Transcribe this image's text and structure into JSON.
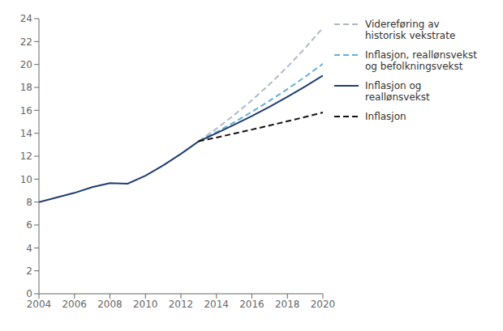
{
  "chart_data": {
    "type": "line",
    "x": [
      2004,
      2005,
      2006,
      2007,
      2008,
      2009,
      2010,
      2011,
      2012,
      2013,
      2014,
      2015,
      2016,
      2017,
      2018,
      2019,
      2020
    ],
    "series": [
      {
        "name": "Videreføring av\nhistorisk vekstrate",
        "color": "#b0b8c8",
        "line_style": "dashed",
        "values": [
          null,
          null,
          null,
          null,
          null,
          null,
          null,
          null,
          null,
          13.3,
          14.4,
          15.59,
          16.88,
          18.28,
          19.79,
          21.43,
          23.2
        ]
      },
      {
        "name": "Inflasjon, reallønsvekst\nog befolkningsvekst",
        "color": "#6aaed6",
        "line_style": "dashed",
        "values": [
          null,
          null,
          null,
          null,
          null,
          null,
          null,
          null,
          null,
          13.3,
          14.1,
          14.96,
          15.87,
          16.84,
          17.85,
          18.92,
          20.06
        ]
      },
      {
        "name": "Inflasjon og reallønsvekst",
        "color": "#1f3d6e",
        "line_style": "solid",
        "values": [
          8.0,
          8.4,
          8.8,
          9.3,
          9.65,
          9.6,
          10.3,
          11.2,
          12.2,
          13.3,
          14.0,
          14.74,
          15.51,
          16.32,
          17.18,
          18.08,
          19.03
        ]
      },
      {
        "name": "Inflasjon",
        "color": "#111111",
        "line_style": "dashed",
        "values": [
          null,
          null,
          null,
          null,
          null,
          null,
          null,
          null,
          null,
          13.3,
          13.63,
          13.97,
          14.32,
          14.68,
          15.05,
          15.42,
          15.81
        ]
      }
    ],
    "xlim": [
      2004,
      2020
    ],
    "xticks": [
      2004,
      2006,
      2008,
      2010,
      2012,
      2014,
      2016,
      2018,
      2020
    ],
    "ylim": [
      0,
      24
    ],
    "yticks": [
      0,
      2,
      4,
      6,
      8,
      10,
      12,
      14,
      16,
      18,
      20,
      22,
      24
    ],
    "grid": false,
    "legend": "right"
  }
}
